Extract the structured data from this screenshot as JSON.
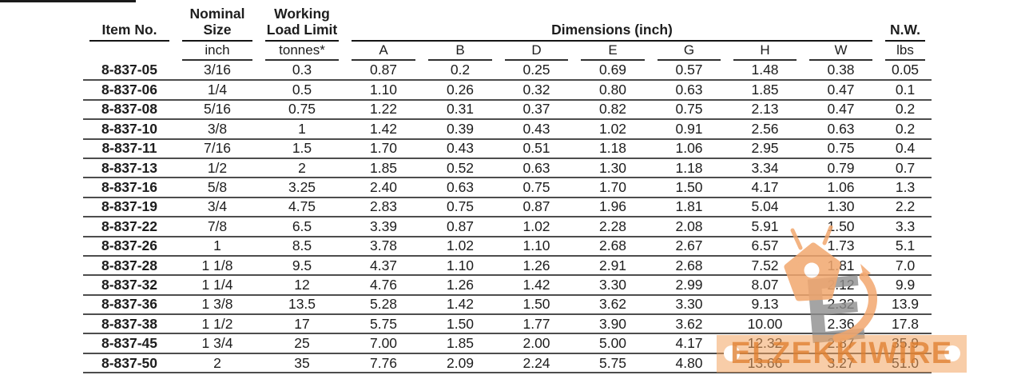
{
  "table": {
    "header": {
      "item_no": "Item No.",
      "nominal_size": "Nominal\nSize",
      "working_load_limit": "Working\nLoad Limit",
      "dimensions_group": "Dimensions (inch)",
      "net_weight": "N.W.",
      "units_size": "inch",
      "units_wll": "tonnes*",
      "units_nw": "lbs",
      "dim_columns": [
        "A",
        "B",
        "D",
        "E",
        "G",
        "H",
        "W"
      ]
    },
    "rows": [
      {
        "item": "8-837-05",
        "size": "3/16",
        "wll": "0.3",
        "dims": [
          "0.87",
          "0.2",
          "0.25",
          "0.69",
          "0.57",
          "1.48",
          "0.38"
        ],
        "nw": "0.05"
      },
      {
        "item": "8-837-06",
        "size": "1/4",
        "wll": "0.5",
        "dims": [
          "1.10",
          "0.26",
          "0.32",
          "0.80",
          "0.63",
          "1.85",
          "0.47"
        ],
        "nw": "0.1"
      },
      {
        "item": "8-837-08",
        "size": "5/16",
        "wll": "0.75",
        "dims": [
          "1.22",
          "0.31",
          "0.37",
          "0.82",
          "0.75",
          "2.13",
          "0.47"
        ],
        "nw": "0.2"
      },
      {
        "item": "8-837-10",
        "size": "3/8",
        "wll": "1",
        "dims": [
          "1.42",
          "0.39",
          "0.43",
          "1.02",
          "0.91",
          "2.56",
          "0.63"
        ],
        "nw": "0.2"
      },
      {
        "item": "8-837-11",
        "size": "7/16",
        "wll": "1.5",
        "dims": [
          "1.70",
          "0.43",
          "0.51",
          "1.18",
          "1.06",
          "2.95",
          "0.75"
        ],
        "nw": "0.4"
      },
      {
        "item": "8-837-13",
        "size": "1/2",
        "wll": "2",
        "dims": [
          "1.85",
          "0.52",
          "0.63",
          "1.30",
          "1.18",
          "3.34",
          "0.79"
        ],
        "nw": "0.7"
      },
      {
        "item": "8-837-16",
        "size": "5/8",
        "wll": "3.25",
        "dims": [
          "2.40",
          "0.63",
          "0.75",
          "1.70",
          "1.50",
          "4.17",
          "1.06"
        ],
        "nw": "1.3"
      },
      {
        "item": "8-837-19",
        "size": "3/4",
        "wll": "4.75",
        "dims": [
          "2.83",
          "0.75",
          "0.87",
          "1.96",
          "1.81",
          "5.04",
          "1.30"
        ],
        "nw": "2.2"
      },
      {
        "item": "8-837-22",
        "size": "7/8",
        "wll": "6.5",
        "dims": [
          "3.39",
          "0.87",
          "1.02",
          "2.28",
          "2.08",
          "5.91",
          "1.50"
        ],
        "nw": "3.3"
      },
      {
        "item": "8-837-26",
        "size": "1",
        "wll": "8.5",
        "dims": [
          "3.78",
          "1.02",
          "1.10",
          "2.68",
          "2.67",
          "6.57",
          "1.73"
        ],
        "nw": "5.1"
      },
      {
        "item": "8-837-28",
        "size": "1 1/8",
        "wll": "9.5",
        "dims": [
          "4.37",
          "1.10",
          "1.26",
          "2.91",
          "2.68",
          "7.52",
          "1.81"
        ],
        "nw": "7.0"
      },
      {
        "item": "8-837-32",
        "size": "1 1/4",
        "wll": "12",
        "dims": [
          "4.76",
          "1.26",
          "1.42",
          "3.30",
          "2.99",
          "8.07",
          "2.12"
        ],
        "nw": "9.9"
      },
      {
        "item": "8-837-36",
        "size": "1 3/8",
        "wll": "13.5",
        "dims": [
          "5.28",
          "1.42",
          "1.50",
          "3.62",
          "3.30",
          "9.13",
          "2.32"
        ],
        "nw": "13.9"
      },
      {
        "item": "8-837-38",
        "size": "1 1/2",
        "wll": "17",
        "dims": [
          "5.75",
          "1.50",
          "1.77",
          "3.90",
          "3.62",
          "10.00",
          "2.36"
        ],
        "nw": "17.8"
      },
      {
        "item": "8-837-45",
        "size": "1 3/4",
        "wll": "25",
        "dims": [
          "7.00",
          "1.85",
          "2.00",
          "5.00",
          "4.17",
          "12.32",
          "2.87"
        ],
        "nw": "35.9"
      },
      {
        "item": "8-837-50",
        "size": "2",
        "wll": "35",
        "dims": [
          "7.76",
          "2.09",
          "2.24",
          "5.75",
          "4.80",
          "13.66",
          "3.27"
        ],
        "nw": "51.0"
      }
    ]
  },
  "watermark": {
    "text": "ELZEKKIWIRE",
    "banner_color": "#f2a460",
    "text_color": "#e08030",
    "logo_gray": "#8e8e8e",
    "logo_orange": "#f2a76e"
  }
}
